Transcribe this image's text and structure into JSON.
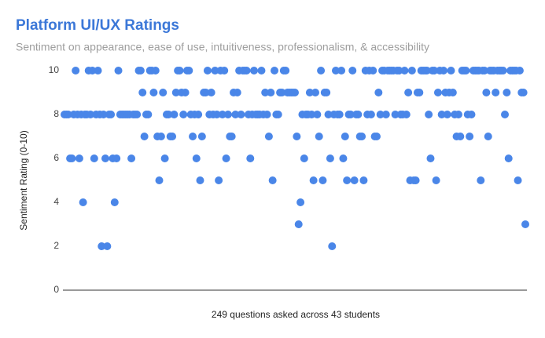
{
  "chart_data": {
    "type": "scatter",
    "title": "Platform UI/UX Ratings",
    "subtitle": "Sentiment on appearance, ease of use, intuitiveness, professionalism, & accessibility",
    "y_label": "Sentiment Rating (0-10)",
    "x_label": "249 questions asked across 43 students",
    "color": "#4a86e8",
    "ylim": [
      0,
      10
    ],
    "yticks": [
      0,
      2,
      4,
      6,
      8,
      10
    ],
    "grid": false,
    "values": [
      8,
      8,
      8,
      6,
      6,
      8,
      10,
      8,
      6,
      8,
      4,
      8,
      8,
      10,
      8,
      10,
      6,
      8,
      10,
      8,
      2,
      8,
      6,
      2,
      8,
      8,
      6,
      4,
      6,
      10,
      8,
      8,
      8,
      8,
      8,
      8,
      6,
      8,
      8,
      8,
      10,
      10,
      9,
      7,
      8,
      8,
      10,
      10,
      9,
      10,
      7,
      5,
      7,
      9,
      6,
      8,
      8,
      7,
      7,
      8,
      9,
      10,
      10,
      9,
      8,
      9,
      10,
      10,
      8,
      7,
      8,
      6,
      8,
      5,
      7,
      9,
      9,
      10,
      8,
      9,
      8,
      10,
      8,
      5,
      10,
      8,
      10,
      6,
      8,
      7,
      7,
      9,
      8,
      9,
      10,
      8,
      10,
      10,
      10,
      8,
      6,
      8,
      10,
      8,
      8,
      8,
      10,
      8,
      9,
      8,
      7,
      9,
      5,
      10,
      8,
      8,
      9,
      9,
      10,
      10,
      9,
      9,
      9,
      9,
      9,
      7,
      3,
      4,
      8,
      6,
      8,
      8,
      9,
      8,
      5,
      9,
      8,
      7,
      10,
      5,
      9,
      9,
      8,
      6,
      2,
      8,
      10,
      8,
      8,
      10,
      6,
      7,
      5,
      8,
      8,
      10,
      5,
      8,
      8,
      7,
      7,
      5,
      10,
      8,
      10,
      8,
      10,
      7,
      7,
      9,
      8,
      10,
      10,
      8,
      10,
      10,
      10,
      10,
      8,
      10,
      10,
      8,
      8,
      10,
      8,
      9,
      5,
      10,
      5,
      5,
      9,
      9,
      10,
      10,
      10,
      10,
      8,
      6,
      10,
      10,
      5,
      9,
      10,
      8,
      10,
      9,
      8,
      9,
      10,
      9,
      8,
      7,
      8,
      7,
      10,
      10,
      10,
      8,
      7,
      8,
      10,
      10,
      10,
      10,
      5,
      10,
      10,
      9,
      7,
      10,
      10,
      10,
      9,
      10,
      10,
      10,
      10,
      8,
      9,
      6,
      10,
      10,
      10,
      10,
      5,
      10,
      9,
      9,
      3
    ]
  }
}
